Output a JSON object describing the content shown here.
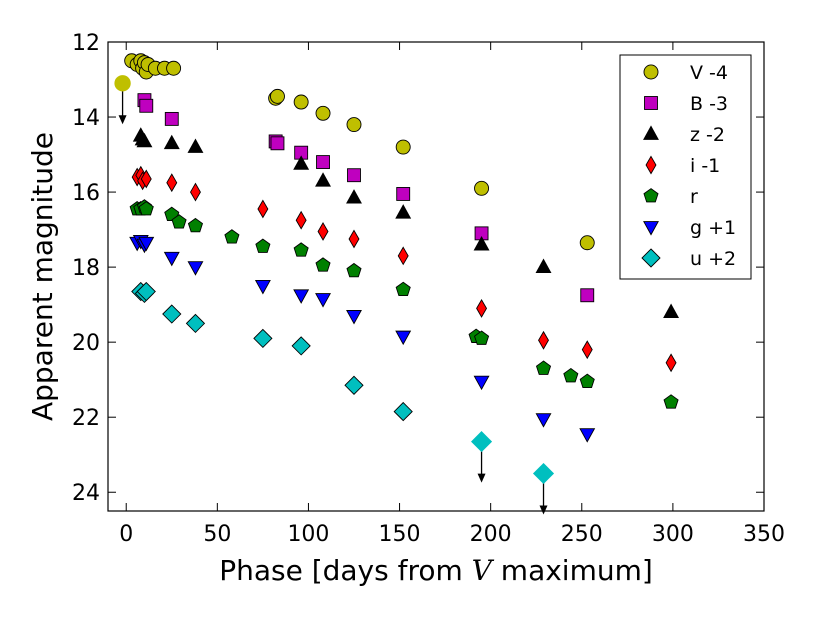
{
  "chart_data": {
    "type": "scatter",
    "title": "",
    "xlabel_prefix": "Phase [days from ",
    "xlabel_var": "V",
    "xlabel_suffix": " maximum]",
    "ylabel": "Apparent magnitude",
    "xlim": [
      -10,
      350
    ],
    "ylim": [
      24.5,
      12
    ],
    "y_inverted": true,
    "grid": false,
    "legend_position": "top-right",
    "x_ticks": [
      0,
      50,
      100,
      150,
      200,
      250,
      300,
      350
    ],
    "y_ticks": [
      12,
      14,
      16,
      18,
      20,
      22,
      24
    ],
    "series": [
      {
        "name": "V -4",
        "marker": "circle",
        "color": "#bfbf00",
        "points": [
          [
            3,
            12.5
          ],
          [
            6,
            12.6
          ],
          [
            8,
            12.5
          ],
          [
            9,
            12.7
          ],
          [
            10,
            12.55
          ],
          [
            11,
            12.8
          ],
          [
            12,
            12.6
          ],
          [
            16,
            12.7
          ],
          [
            21,
            12.7
          ],
          [
            26,
            12.7
          ],
          [
            82,
            13.5
          ],
          [
            83,
            13.45
          ],
          [
            96,
            13.6
          ],
          [
            108,
            13.9
          ],
          [
            125,
            14.2
          ],
          [
            152,
            14.8
          ],
          [
            195,
            15.9
          ],
          [
            253,
            17.35
          ]
        ],
        "upper_limits": [
          [
            -2,
            13.1
          ]
        ]
      },
      {
        "name": "B -3",
        "marker": "square",
        "color": "#bf00bf",
        "points": [
          [
            10,
            13.55
          ],
          [
            11,
            13.7
          ],
          [
            25,
            14.05
          ],
          [
            82,
            14.65
          ],
          [
            83,
            14.7
          ],
          [
            96,
            14.95
          ],
          [
            108,
            15.2
          ],
          [
            125,
            15.55
          ],
          [
            152,
            16.05
          ],
          [
            195,
            17.1
          ],
          [
            253,
            18.75
          ]
        ],
        "upper_limits": []
      },
      {
        "name": "z -2",
        "marker": "triangle-up",
        "color": "#000000",
        "points": [
          [
            8,
            14.5
          ],
          [
            9,
            14.6
          ],
          [
            10,
            14.65
          ],
          [
            25,
            14.7
          ],
          [
            38,
            14.8
          ],
          [
            96,
            15.25
          ],
          [
            108,
            15.7
          ],
          [
            125,
            16.15
          ],
          [
            152,
            16.55
          ],
          [
            195,
            17.4
          ],
          [
            229,
            18.0
          ],
          [
            299,
            19.2
          ]
        ],
        "upper_limits": []
      },
      {
        "name": "i -1",
        "marker": "thin-diamond",
        "color": "#ff0000",
        "points": [
          [
            6,
            15.6
          ],
          [
            8,
            15.55
          ],
          [
            9,
            15.7
          ],
          [
            11,
            15.65
          ],
          [
            25,
            15.75
          ],
          [
            38,
            16.0
          ],
          [
            75,
            16.45
          ],
          [
            96,
            16.75
          ],
          [
            108,
            17.05
          ],
          [
            125,
            17.25
          ],
          [
            152,
            17.7
          ],
          [
            195,
            19.1
          ],
          [
            229,
            19.95
          ],
          [
            253,
            20.2
          ],
          [
            299,
            20.55
          ]
        ],
        "upper_limits": []
      },
      {
        "name": "r",
        "marker": "pentagon",
        "color": "#008000",
        "points": [
          [
            6,
            16.45
          ],
          [
            8,
            16.45
          ],
          [
            10,
            16.4
          ],
          [
            11,
            16.45
          ],
          [
            25,
            16.6
          ],
          [
            29,
            16.8
          ],
          [
            38,
            16.9
          ],
          [
            58,
            17.2
          ],
          [
            75,
            17.45
          ],
          [
            96,
            17.55
          ],
          [
            108,
            17.95
          ],
          [
            125,
            18.1
          ],
          [
            152,
            18.6
          ],
          [
            192,
            19.85
          ],
          [
            195,
            19.9
          ],
          [
            229,
            20.7
          ],
          [
            244,
            20.9
          ],
          [
            253,
            21.05
          ],
          [
            299,
            21.6
          ]
        ],
        "upper_limits": []
      },
      {
        "name": "g +1",
        "marker": "triangle-down",
        "color": "#0000ff",
        "points": [
          [
            6,
            17.35
          ],
          [
            8,
            17.3
          ],
          [
            10,
            17.4
          ],
          [
            11,
            17.35
          ],
          [
            25,
            17.75
          ],
          [
            38,
            18.0
          ],
          [
            75,
            18.5
          ],
          [
            96,
            18.75
          ],
          [
            108,
            18.85
          ],
          [
            125,
            19.3
          ],
          [
            152,
            19.85
          ],
          [
            195,
            21.05
          ],
          [
            229,
            22.05
          ],
          [
            253,
            22.45
          ]
        ],
        "upper_limits": []
      },
      {
        "name": "u +2",
        "marker": "diamond",
        "color": "#00bfbf",
        "points": [
          [
            8,
            18.65
          ],
          [
            10,
            18.7
          ],
          [
            11,
            18.65
          ],
          [
            25,
            19.25
          ],
          [
            38,
            19.5
          ],
          [
            75,
            19.9
          ],
          [
            96,
            20.1
          ],
          [
            125,
            21.15
          ],
          [
            152,
            21.85
          ]
        ],
        "upper_limits": [
          [
            195,
            22.65
          ],
          [
            229,
            23.5
          ]
        ]
      }
    ]
  }
}
